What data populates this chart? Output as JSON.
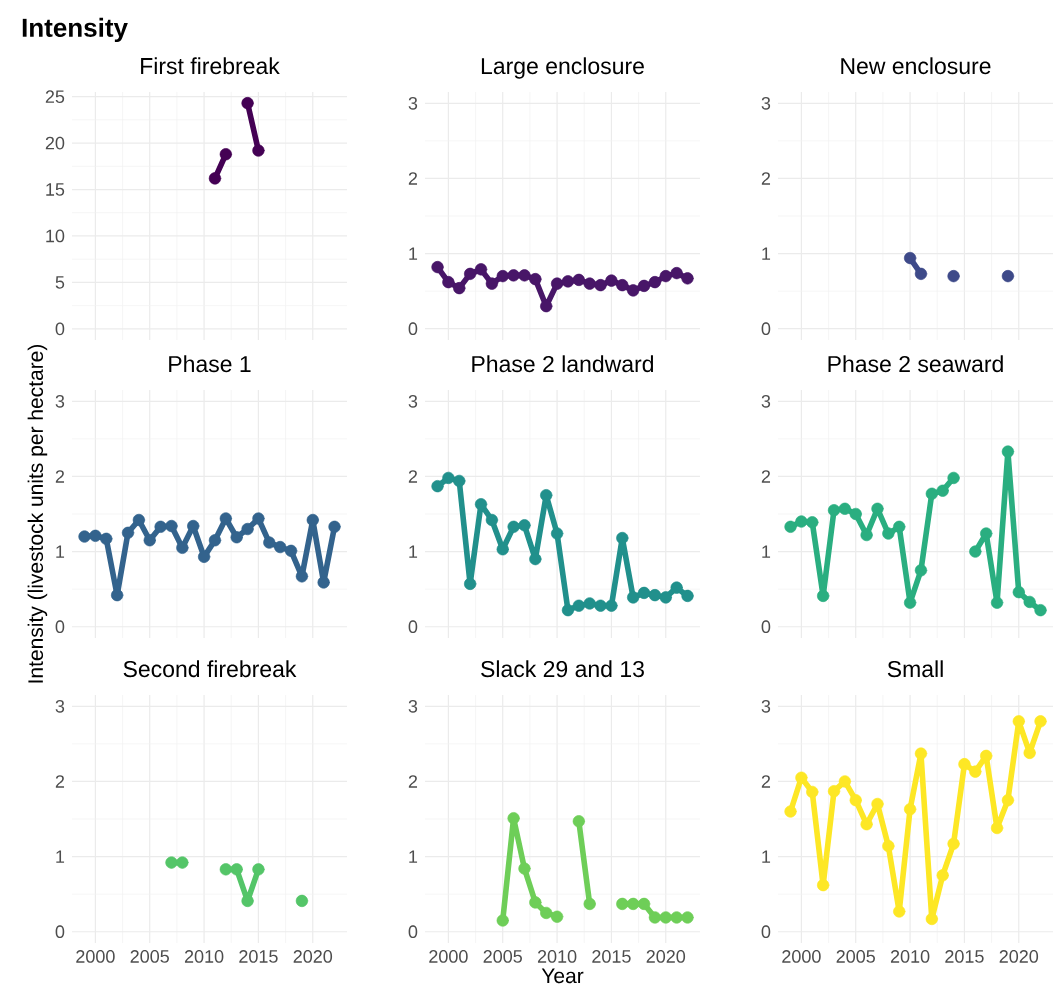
{
  "chart_data": [
    {
      "type": "other",
      "title": "Intensity"
    },
    {
      "type": "line",
      "title": "First firebreak",
      "x": [
        2011,
        2012,
        2013,
        2014,
        2015
      ],
      "values": [
        16.2,
        18.8,
        null,
        24.3,
        19.2
      ],
      "color": "#440154",
      "xlim": [
        1997.85,
        2023.15
      ],
      "ylim": [
        -1.2,
        25.5
      ],
      "xticks": [
        2000,
        2005,
        2010,
        2015,
        2020
      ],
      "yticks": [
        0,
        5,
        10,
        15,
        20,
        25
      ],
      "grid": true,
      "marker": "circle",
      "line_style": "solid",
      "tick_labels": "y"
    },
    {
      "type": "line",
      "title": "Large enclosure",
      "x": [
        1999,
        2000,
        2001,
        2002,
        2003,
        2004,
        2005,
        2006,
        2007,
        2008,
        2009,
        2010,
        2011,
        2012,
        2013,
        2014,
        2015,
        2016,
        2017,
        2018,
        2019,
        2020,
        2021,
        2022
      ],
      "values": [
        0.82,
        0.62,
        0.54,
        0.73,
        0.79,
        0.6,
        0.7,
        0.71,
        0.71,
        0.66,
        0.3,
        0.6,
        0.63,
        0.65,
        0.6,
        0.58,
        0.64,
        0.58,
        0.51,
        0.57,
        0.62,
        0.7,
        0.74,
        0.67
      ],
      "color": "#481668",
      "xlim": [
        1997.85,
        2023.15
      ],
      "ylim": [
        -0.15,
        3.15
      ],
      "xticks": [
        2000,
        2005,
        2010,
        2015,
        2020
      ],
      "yticks": [
        0,
        1,
        2,
        3
      ],
      "grid": true,
      "marker": "circle",
      "line_style": "solid",
      "tick_labels": "y"
    },
    {
      "type": "line",
      "title": "New enclosure",
      "x": [
        2010,
        2011,
        2012,
        2013,
        2014,
        2015,
        2016,
        2017,
        2018,
        2019
      ],
      "values": [
        0.94,
        0.73,
        null,
        null,
        0.7,
        null,
        null,
        null,
        null,
        0.7
      ],
      "color": "#3e4a89",
      "xlim": [
        1997.85,
        2023.15
      ],
      "ylim": [
        -0.15,
        3.15
      ],
      "xticks": [
        2000,
        2005,
        2010,
        2015,
        2020
      ],
      "yticks": [
        0,
        1,
        2,
        3
      ],
      "grid": true,
      "marker": "circle",
      "line_style": "solid",
      "tick_labels": "y"
    },
    {
      "type": "line",
      "title": "Phase 1",
      "ylabel": "Intensity (livestock units per hectare)",
      "x": [
        1999,
        2000,
        2001,
        2002,
        2003,
        2004,
        2005,
        2006,
        2007,
        2008,
        2009,
        2010,
        2011,
        2012,
        2013,
        2014,
        2015,
        2016,
        2017,
        2018,
        2019,
        2020,
        2021,
        2022
      ],
      "values": [
        1.2,
        1.21,
        1.17,
        0.42,
        1.25,
        1.42,
        1.15,
        1.33,
        1.34,
        1.05,
        1.34,
        0.93,
        1.15,
        1.44,
        1.19,
        1.3,
        1.44,
        1.12,
        1.06,
        1.01,
        0.67,
        1.42,
        0.59,
        1.33
      ],
      "color": "#33638d",
      "xlim": [
        1997.85,
        2023.15
      ],
      "ylim": [
        -0.15,
        3.15
      ],
      "xticks": [
        2000,
        2005,
        2010,
        2015,
        2020
      ],
      "yticks": [
        0,
        1,
        2,
        3
      ],
      "grid": true,
      "marker": "circle",
      "line_style": "solid",
      "tick_labels": "y"
    },
    {
      "type": "line",
      "title": "Phase 2 landward",
      "x": [
        1999,
        2000,
        2001,
        2002,
        2003,
        2004,
        2005,
        2006,
        2007,
        2008,
        2009,
        2010,
        2011,
        2012,
        2013,
        2014,
        2015,
        2016,
        2017,
        2018,
        2019,
        2020,
        2021,
        2022
      ],
      "values": [
        1.87,
        1.98,
        1.94,
        0.57,
        1.63,
        1.42,
        1.03,
        1.33,
        1.35,
        0.9,
        1.75,
        1.24,
        0.22,
        0.28,
        0.31,
        0.28,
        0.28,
        1.18,
        0.39,
        0.45,
        0.42,
        0.39,
        0.52,
        0.41
      ],
      "color": "#21908c",
      "xlim": [
        1997.85,
        2023.15
      ],
      "ylim": [
        -0.15,
        3.15
      ],
      "xticks": [
        2000,
        2005,
        2010,
        2015,
        2020
      ],
      "yticks": [
        0,
        1,
        2,
        3
      ],
      "grid": true,
      "marker": "circle",
      "line_style": "solid",
      "tick_labels": "y"
    },
    {
      "type": "line",
      "title": "Phase 2 seaward",
      "x": [
        1999,
        2000,
        2001,
        2002,
        2003,
        2004,
        2005,
        2006,
        2007,
        2008,
        2009,
        2010,
        2011,
        2012,
        2013,
        2014,
        2015,
        2016,
        2017,
        2018,
        2019,
        2020,
        2021,
        2022
      ],
      "values": [
        1.33,
        1.4,
        1.39,
        0.41,
        1.55,
        1.57,
        1.5,
        1.22,
        1.57,
        1.24,
        1.33,
        0.32,
        0.75,
        1.77,
        1.81,
        1.98,
        null,
        1.0,
        1.24,
        0.32,
        2.33,
        0.46,
        0.33,
        0.22
      ],
      "color": "#2aae80",
      "xlim": [
        1997.85,
        2023.15
      ],
      "ylim": [
        -0.15,
        3.15
      ],
      "xticks": [
        2000,
        2005,
        2010,
        2015,
        2020
      ],
      "yticks": [
        0,
        1,
        2,
        3
      ],
      "grid": true,
      "marker": "circle",
      "line_style": "solid",
      "tick_labels": "y"
    },
    {
      "type": "line",
      "title": "Second firebreak",
      "x": [
        2007,
        2008,
        2009,
        2010,
        2011,
        2012,
        2013,
        2014,
        2015,
        2016,
        2017,
        2018,
        2019
      ],
      "values": [
        0.92,
        0.92,
        null,
        null,
        null,
        0.83,
        0.83,
        0.41,
        0.83,
        null,
        null,
        null,
        0.41
      ],
      "color": "#54c568",
      "xlim": [
        1997.85,
        2023.15
      ],
      "ylim": [
        -0.15,
        3.15
      ],
      "xticks": [
        2000,
        2005,
        2010,
        2015,
        2020
      ],
      "yticks": [
        0,
        1,
        2,
        3
      ],
      "grid": true,
      "marker": "circle",
      "line_style": "solid"
    },
    {
      "type": "line",
      "title": "Slack 29 and 13",
      "xlabel": "Year",
      "x": [
        2005,
        2006,
        2007,
        2008,
        2009,
        2010,
        2011,
        2012,
        2013,
        2014,
        2015,
        2016,
        2017,
        2018,
        2019,
        2020,
        2021,
        2022
      ],
      "values": [
        0.15,
        1.51,
        0.84,
        0.39,
        0.25,
        0.2,
        null,
        1.47,
        0.37,
        null,
        null,
        0.37,
        0.37,
        0.37,
        0.19,
        0.19,
        0.19,
        0.19
      ],
      "color": "#6ece58",
      "xlim": [
        1997.85,
        2023.15
      ],
      "ylim": [
        -0.15,
        3.15
      ],
      "xticks": [
        2000,
        2005,
        2010,
        2015,
        2020
      ],
      "yticks": [
        0,
        1,
        2,
        3
      ],
      "grid": true,
      "marker": "circle",
      "line_style": "solid"
    },
    {
      "type": "line",
      "title": "Small",
      "x": [
        1999,
        2000,
        2001,
        2002,
        2003,
        2004,
        2005,
        2006,
        2007,
        2008,
        2009,
        2010,
        2011,
        2012,
        2013,
        2014,
        2015,
        2016,
        2017,
        2018,
        2019,
        2020,
        2021,
        2022
      ],
      "values": [
        1.6,
        2.05,
        1.86,
        0.62,
        1.87,
        2.0,
        1.75,
        1.43,
        1.7,
        1.14,
        0.27,
        1.63,
        2.37,
        0.17,
        0.75,
        1.17,
        2.23,
        2.13,
        2.34,
        1.38,
        1.75,
        2.8,
        2.38,
        2.8
      ],
      "color": "#fde725",
      "xlim": [
        1997.85,
        2023.15
      ],
      "ylim": [
        -0.15,
        3.15
      ],
      "xticks": [
        2000,
        2005,
        2010,
        2015,
        2020
      ],
      "yticks": [
        0,
        1,
        2,
        3
      ],
      "grid": true,
      "marker": "circle",
      "line_style": "solid"
    }
  ]
}
